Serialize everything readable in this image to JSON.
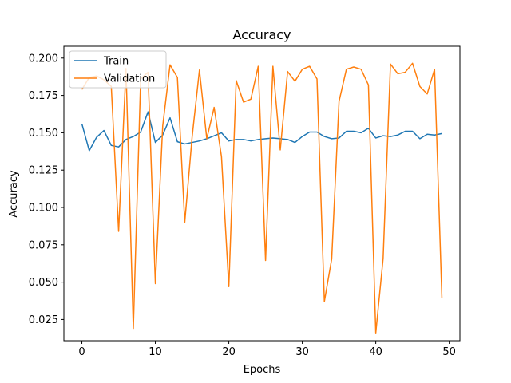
{
  "chart_data": {
    "type": "line",
    "title": "Accuracy",
    "xlabel": "Epochs",
    "ylabel": "Accuracy",
    "xlim": [
      -2.45,
      51.45
    ],
    "ylim": [
      0.0108,
      0.2079
    ],
    "xticks": [
      0,
      10,
      20,
      30,
      40,
      50
    ],
    "xtick_labels": [
      "0",
      "10",
      "20",
      "30",
      "40",
      "50"
    ],
    "yticks": [
      0.025,
      0.05,
      0.075,
      0.1,
      0.125,
      0.15,
      0.175,
      0.2
    ],
    "ytick_labels": [
      "0.025",
      "0.050",
      "0.075",
      "0.100",
      "0.125",
      "0.150",
      "0.175",
      "0.200"
    ],
    "grid": false,
    "legend": "top-left",
    "x": [
      0,
      1,
      2,
      3,
      4,
      5,
      6,
      7,
      8,
      9,
      10,
      11,
      12,
      13,
      14,
      15,
      16,
      17,
      18,
      19,
      20,
      21,
      22,
      23,
      24,
      25,
      26,
      27,
      28,
      29,
      30,
      31,
      32,
      33,
      34,
      35,
      36,
      37,
      38,
      39,
      40,
      41,
      42,
      43,
      44,
      45,
      46,
      47,
      48,
      49
    ],
    "series": [
      {
        "name": "Train",
        "color": "#1f77b4",
        "values": [
          0.156,
          0.138,
          0.147,
          0.1515,
          0.1415,
          0.1405,
          0.1455,
          0.1475,
          0.1505,
          0.164,
          0.1435,
          0.1485,
          0.16,
          0.144,
          0.1425,
          0.1435,
          0.1445,
          0.146,
          0.148,
          0.15,
          0.1445,
          0.1455,
          0.1455,
          0.1445,
          0.1455,
          0.146,
          0.1465,
          0.146,
          0.1455,
          0.1435,
          0.1475,
          0.1505,
          0.1505,
          0.1475,
          0.146,
          0.1465,
          0.151,
          0.151,
          0.15,
          0.153,
          0.1465,
          0.148,
          0.1475,
          0.1485,
          0.151,
          0.151,
          0.146,
          0.149,
          0.1485,
          0.1495
        ]
      },
      {
        "name": "Validation",
        "color": "#ff7f0e",
        "values": [
          0.179,
          0.187,
          0.188,
          0.1855,
          0.181,
          0.084,
          0.193,
          0.019,
          0.186,
          0.1905,
          0.049,
          0.1545,
          0.1955,
          0.187,
          0.09,
          0.147,
          0.192,
          0.146,
          0.167,
          0.134,
          0.047,
          0.185,
          0.1705,
          0.1725,
          0.1945,
          0.0645,
          0.1945,
          0.1385,
          0.191,
          0.1845,
          0.1925,
          0.1945,
          0.186,
          0.037,
          0.0655,
          0.171,
          0.1925,
          0.194,
          0.1925,
          0.182,
          0.016,
          0.066,
          0.196,
          0.1895,
          0.1905,
          0.1965,
          0.181,
          0.176,
          0.1925,
          0.0395
        ]
      }
    ]
  }
}
